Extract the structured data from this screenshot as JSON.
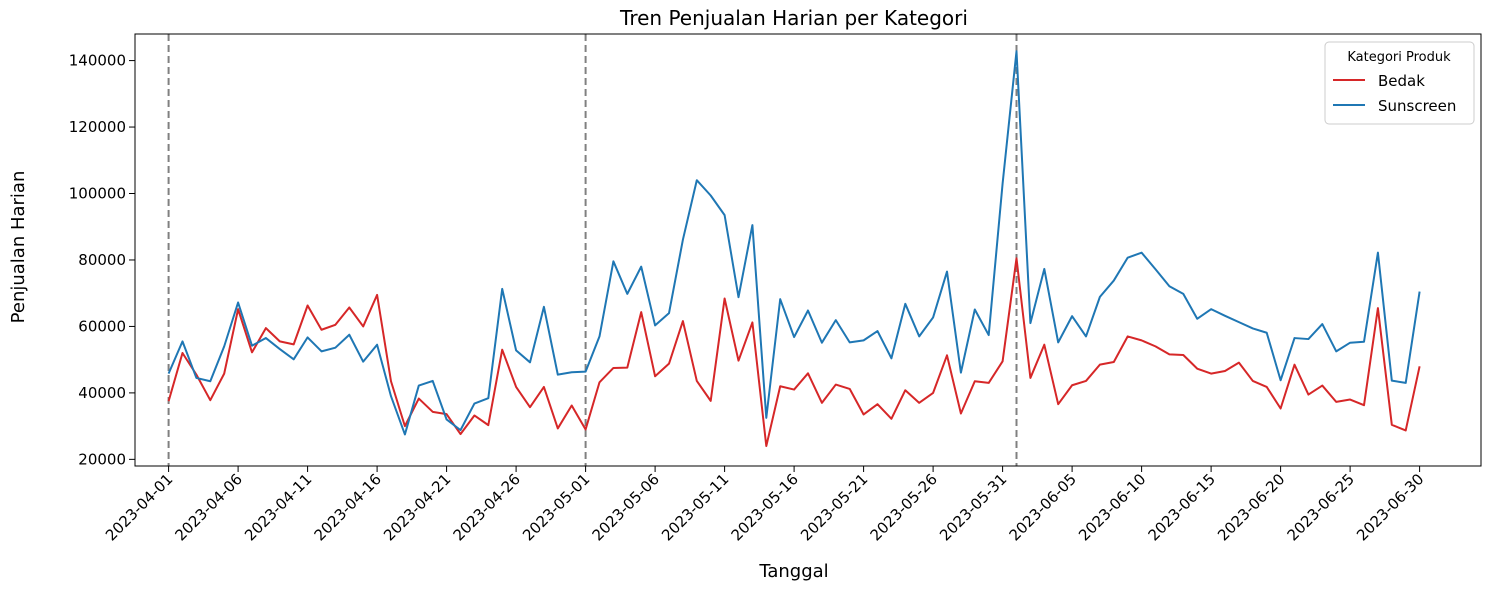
{
  "chart_data": {
    "type": "line",
    "title": "Tren Penjualan Harian per Kategori",
    "xlabel": "Tanggal",
    "ylabel": "Penjualan Harian",
    "start_date": "2023-04-01",
    "xlim": [
      "2023-03-29T14:00",
      "2023-07-04T10:00"
    ],
    "ylim": [
      18000,
      148000
    ],
    "yticks": [
      20000,
      40000,
      60000,
      80000,
      100000,
      120000,
      140000
    ],
    "xticks": [
      "2023-04-01",
      "2023-04-06",
      "2023-04-11",
      "2023-04-16",
      "2023-04-21",
      "2023-04-26",
      "2023-05-01",
      "2023-05-06",
      "2023-05-11",
      "2023-05-16",
      "2023-05-21",
      "2023-05-26",
      "2023-05-31",
      "2023-06-05",
      "2023-06-10",
      "2023-06-15",
      "2023-06-20",
      "2023-06-25",
      "2023-06-30"
    ],
    "vlines": [
      "2023-04-01",
      "2023-05-01",
      "2023-06-01"
    ],
    "grid": false,
    "legend": {
      "title": "Kategori Produk",
      "position": "top-right"
    },
    "series": [
      {
        "name": "Bedak",
        "color": "#d62728",
        "values": [
          37500,
          52000,
          45500,
          37800,
          45800,
          65200,
          52200,
          59500,
          55500,
          54600,
          66300,
          59000,
          60500,
          65700,
          60000,
          69500,
          43500,
          30000,
          38300,
          34300,
          33600,
          27600,
          33200,
          30300,
          53000,
          41800,
          35700,
          41800,
          29300,
          36200,
          29000,
          43200,
          47500,
          47600,
          64300,
          45000,
          48800,
          61600,
          43600,
          37600,
          68400,
          49700,
          61200,
          24000,
          42000,
          41000,
          45900,
          37000,
          42500,
          41200,
          33500,
          36600,
          32200,
          40800,
          37000,
          40000,
          51300,
          33800,
          43500,
          43000,
          49500,
          80500,
          44500,
          54500,
          36600,
          42300,
          43600,
          48500,
          49300,
          57000,
          55800,
          54000,
          51600,
          51400,
          47300,
          45800,
          46600,
          49100,
          43600,
          41800,
          35300,
          48500,
          39500,
          42200,
          37300,
          38000,
          36300,
          65500,
          30400,
          28700,
          48000
        ],
        "data_labels": []
      },
      {
        "name": "Sunscreen",
        "color": "#1f77b4",
        "values": [
          45800,
          55500,
          44500,
          43500,
          54000,
          67200,
          54200,
          56500,
          53200,
          50100,
          56700,
          52500,
          53600,
          57500,
          49400,
          54500,
          39000,
          27500,
          42200,
          43600,
          32000,
          28800,
          36800,
          38400,
          71300,
          52800,
          49200,
          65900,
          45500,
          46200,
          46400,
          57000,
          79600,
          69800,
          78000,
          60300,
          64000,
          86100,
          104000,
          99400,
          93500,
          68800,
          90500,
          32500,
          68200,
          56800,
          64800,
          55100,
          61900,
          55200,
          55800,
          58600,
          50400,
          66800,
          57000,
          62700,
          76500,
          46100,
          65100,
          57400,
          103000,
          142800,
          61000,
          77300,
          55200,
          63100,
          57000,
          68900,
          73800,
          80700,
          82200,
          77200,
          72100,
          69800,
          62300,
          65200,
          63200,
          61300,
          59400,
          58100,
          43800,
          56500,
          56200,
          60700,
          52500,
          55100,
          55400,
          82200,
          43700,
          43000,
          70500
        ],
        "data_labels": []
      }
    ]
  }
}
